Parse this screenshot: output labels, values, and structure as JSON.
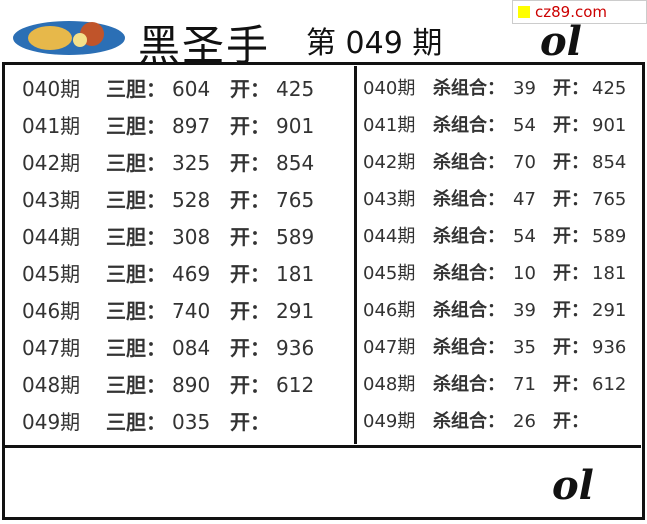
{
  "header": {
    "title": "黑圣手",
    "issue": "第 049 期",
    "watermark": "cz89.com",
    "watermark_color": "#cc0000",
    "signature": "ol"
  },
  "left": {
    "label_dan": "三胆：",
    "label_kai": "开：",
    "rows": [
      {
        "period": "040期",
        "dan": "604",
        "kai": "425"
      },
      {
        "period": "041期",
        "dan": "897",
        "kai": "901"
      },
      {
        "period": "042期",
        "dan": "325",
        "kai": "854"
      },
      {
        "period": "043期",
        "dan": "528",
        "kai": "765"
      },
      {
        "period": "044期",
        "dan": "308",
        "kai": "589"
      },
      {
        "period": "045期",
        "dan": "469",
        "kai": "181"
      },
      {
        "period": "046期",
        "dan": "740",
        "kai": "291"
      },
      {
        "period": "047期",
        "dan": "084",
        "kai": "936"
      },
      {
        "period": "048期",
        "dan": "890",
        "kai": "612"
      },
      {
        "period": "049期",
        "dan": "035",
        "kai": ""
      }
    ]
  },
  "right": {
    "label_sha": "杀组合：",
    "label_kai": "开：",
    "rows": [
      {
        "period": "040期",
        "sha": "39",
        "kai": "425"
      },
      {
        "period": "041期",
        "sha": "54",
        "kai": "901"
      },
      {
        "period": "042期",
        "sha": "70",
        "kai": "854"
      },
      {
        "period": "043期",
        "sha": "47",
        "kai": "765"
      },
      {
        "period": "044期",
        "sha": "54",
        "kai": "589"
      },
      {
        "period": "045期",
        "sha": "10",
        "kai": "181"
      },
      {
        "period": "046期",
        "sha": "39",
        "kai": "291"
      },
      {
        "period": "047期",
        "sha": "35",
        "kai": "936"
      },
      {
        "period": "048期",
        "sha": "71",
        "kai": "612"
      },
      {
        "period": "049期",
        "sha": "26",
        "kai": ""
      }
    ]
  }
}
